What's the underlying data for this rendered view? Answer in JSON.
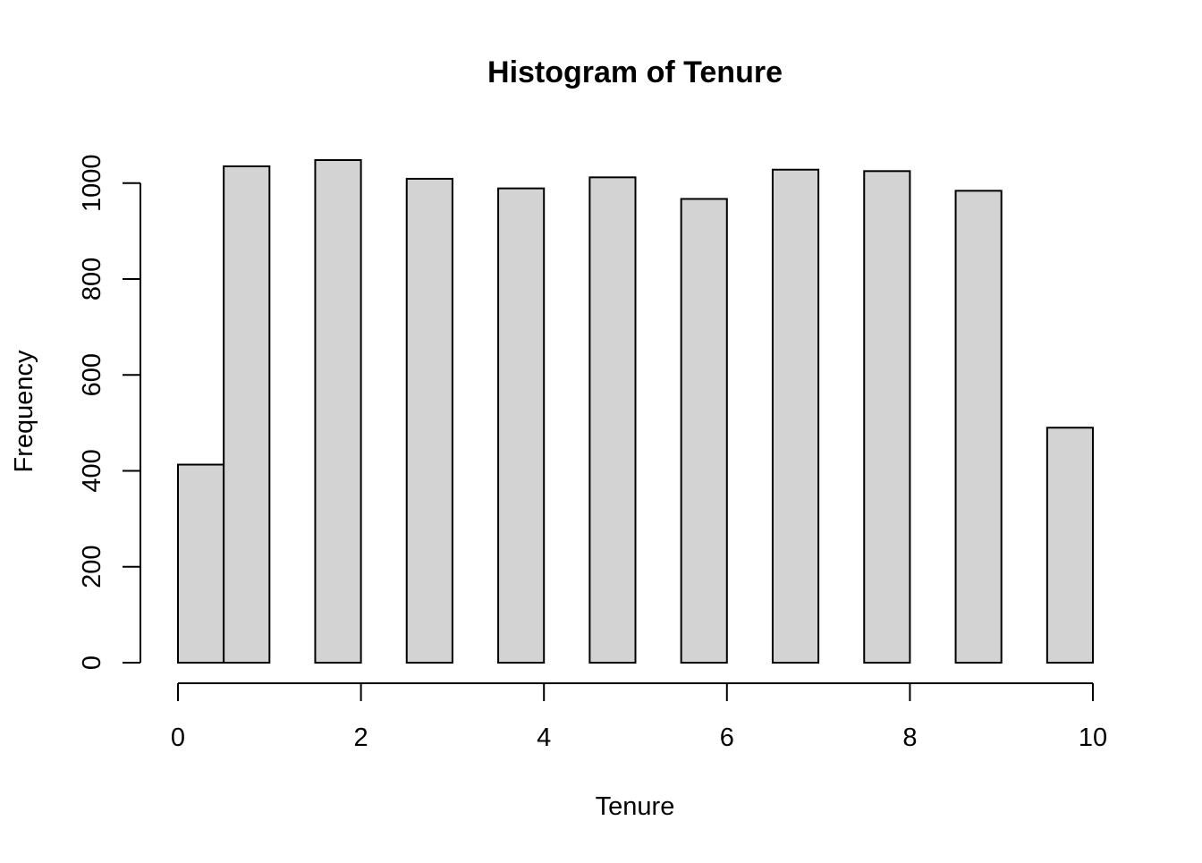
{
  "chart_data": {
    "type": "bar",
    "title": "Histogram of Tenure",
    "xlabel": "Tenure",
    "ylabel": "Frequency",
    "bin_edges": [
      0,
      0.5,
      1,
      1.5,
      2,
      2.5,
      3,
      3.5,
      4,
      4.5,
      5,
      5.5,
      6,
      6.5,
      7,
      7.5,
      8,
      8.5,
      9,
      9.5,
      10
    ],
    "values": [
      413,
      1035,
      0,
      1048,
      0,
      1009,
      0,
      989,
      0,
      1012,
      0,
      967,
      0,
      1028,
      0,
      1025,
      0,
      984,
      0,
      490
    ],
    "xlim": [
      0,
      10
    ],
    "ylim": [
      0,
      1048
    ],
    "x_ticks": [
      "0",
      "2",
      "4",
      "6",
      "8",
      "10"
    ],
    "y_ticks": [
      "0",
      "200",
      "400",
      "600",
      "800",
      "1000"
    ],
    "bar_fill": "#d3d3d3",
    "bar_stroke": "#000000",
    "grid": false,
    "legend": "none"
  }
}
